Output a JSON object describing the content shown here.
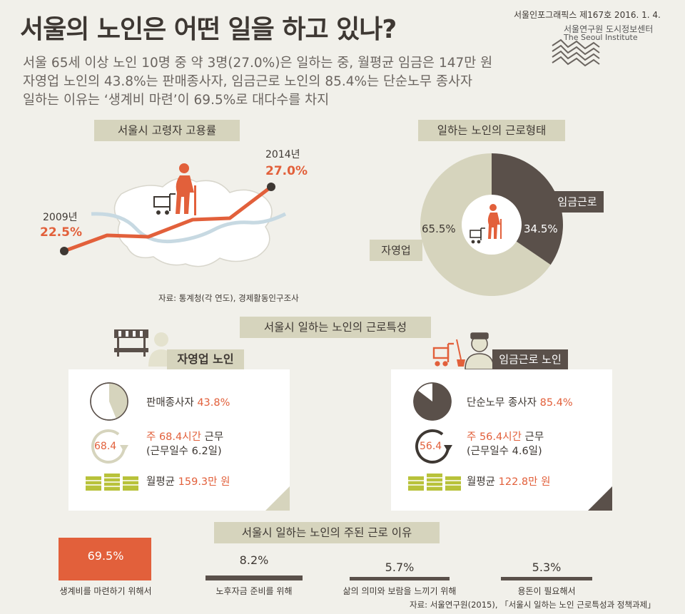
{
  "header": {
    "title": "서울의 노인은 어떤 일을 하고 있나?",
    "issue": "서울인포그래픽스 제167호 2016. 1. 4.",
    "institute_ko": "서울연구원 도시정보센터",
    "institute_en": "The Seoul Institute"
  },
  "summary": {
    "line1": "서울 65세 이상 노인 10명 중 약 3명(27.0%)은 일하는 중, 월평균 임금은 147만 원",
    "line2": "자영업 노인의 43.8%는 판매종사자, 임금근로 노인의 85.4%는 단순노무 종사자",
    "line3": "일하는 이유는 ‘생계비 마련’이 69.5%로 대다수를 차지"
  },
  "employment": {
    "label": "서울시 고령자 고용률",
    "start_year": "2009년",
    "start_value": "22.5%",
    "end_year": "2014년",
    "end_value": "27.0%",
    "source": "자료: 통계청(각 연도), 경제활동인구조사",
    "color_line": "#e2603b"
  },
  "work_type": {
    "label": "일하는 노인의 근로형태",
    "self_label": "자영업",
    "self_value": "65.5%",
    "self_fraction": 0.655,
    "wage_label": "임금근로",
    "wage_value": "34.5%",
    "wage_fraction": 0.345,
    "color_self": "#d6d4bd",
    "color_wage": "#5a504a"
  },
  "characteristics": {
    "label": "서울시 일하는 노인의 근로특성",
    "self": {
      "title": "자영업 노인",
      "job_label": "판매종사자",
      "job_value": "43.8%",
      "job_fraction": 0.438,
      "hours_icon_value": "68.4",
      "hours_prefix": "주 68.4시간",
      "hours_suffix": " 근무",
      "days": "(근무일수 6.2일)",
      "wage_label": "월평균",
      "wage_value": "159.3만 원"
    },
    "wage": {
      "title": "임금근로 노인",
      "job_label": "단순노무 종사자",
      "job_value": "85.4%",
      "job_fraction": 0.854,
      "hours_icon_value": "56.4",
      "hours_prefix": "주 56.4시간",
      "hours_suffix": " 근무",
      "days": "(근무일수 4.6일)",
      "wage_label": "월평균",
      "wage_value": "122.8만 원"
    }
  },
  "reasons": {
    "label": "서울시 일하는 노인의 주된 근로 이유",
    "items": [
      {
        "value": "69.5%",
        "fraction": 0.695,
        "label": "생계비를 마련하기 위해서"
      },
      {
        "value": "8.2%",
        "fraction": 0.082,
        "label": "노후자금 준비를 위해"
      },
      {
        "value": "5.7%",
        "fraction": 0.057,
        "label": "삶의 의미와 보람을 느끼기 위해"
      },
      {
        "value": "5.3%",
        "fraction": 0.053,
        "label": "용돈이 필요해서"
      }
    ],
    "source": "자료: 서울연구원(2015), 「서울시 일하는 노인 근로특성과 정책과제」"
  },
  "icons": [
    "seoul-institute-logo-icon",
    "seoul-map-icon",
    "elderly-worker-icon",
    "cart-icon",
    "market-stall-icon",
    "person-icon",
    "clock-arrow-icon",
    "money-stack-icon",
    "worker-cap-icon",
    "broom-icon"
  ]
}
